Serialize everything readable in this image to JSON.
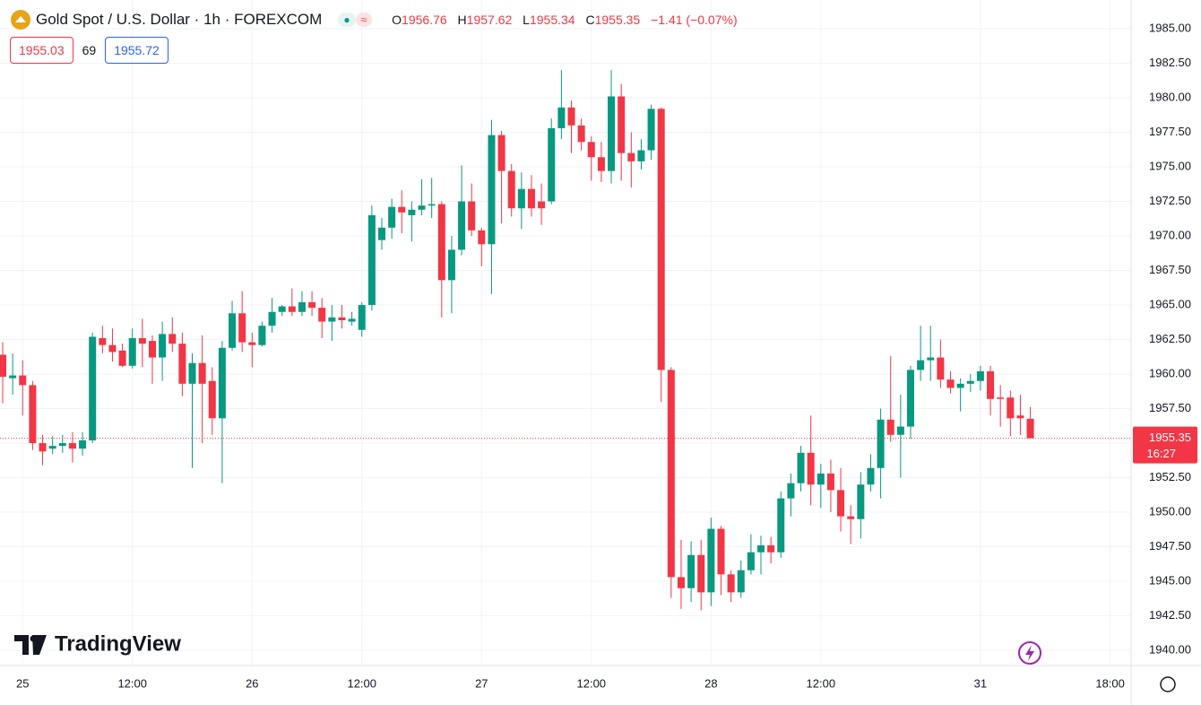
{
  "header": {
    "title": "Gold Spot / U.S. Dollar · 1h · FOREXCOM",
    "ohlc_labels": [
      "O",
      "H",
      "L",
      "C"
    ],
    "change": "−1.41 (−0.07%)",
    "bid": "1955.03",
    "spread": "69",
    "ask": "1955.72",
    "countdown": "16:27",
    "logo": "TradingView"
  },
  "chart_data": {
    "type": "candlestick",
    "up_color": "#089981",
    "down_color": "#f23645",
    "grid": true,
    "open": [
      1961.4,
      1959.7,
      1959.9,
      1959.2,
      1955.0,
      1954.6,
      1954.8,
      1955.0,
      1954.6,
      1955.2,
      1962.6,
      1962.1,
      1961.7,
      1960.6,
      1962.6,
      1962.4,
      1961.2,
      1962.9,
      1962.2,
      1959.3,
      1960.8,
      1959.5,
      1956.8,
      1961.9,
      1964.4,
      1962.3,
      1962.1,
      1963.5,
      1964.5,
      1964.9,
      1964.5,
      1965.2,
      1964.8,
      1963.8,
      1964.1,
      1963.8,
      1963.2,
      1965.0,
      1969.7,
      1970.6,
      1972.1,
      1971.5,
      1971.9,
      1972.2,
      1972.3,
      1966.8,
      1969.0,
      1972.5,
      1970.4,
      1969.4,
      1977.3,
      1974.7,
      1972.0,
      1973.4,
      1972.5,
      1972.5,
      1977.8,
      1979.3,
      1978.0,
      1976.8,
      1975.7,
      1974.7,
      1980.1,
      1976.0,
      1975.4,
      1976.2,
      1979.2,
      1960.3,
      1945.3,
      1944.5,
      1946.9,
      1944.2,
      1948.8,
      1945.5,
      1944.2,
      1945.8,
      1947.1,
      1947.6,
      1947.1,
      1951.0,
      1952.1,
      1954.3,
      1952.0,
      1952.8,
      1951.6,
      1949.7,
      1949.5,
      1952.0,
      1953.2,
      1956.7,
      1955.6,
      1956.2,
      1960.3,
      1961.0,
      1961.2,
      1959.6,
      1959.0,
      1959.3,
      1959.5,
      1960.2,
      1958.3,
      1958.3,
      1957.0,
      1956.76
    ],
    "high": [
      1962.3,
      1961.5,
      1961.0,
      1959.5,
      1955.6,
      1955.5,
      1955.6,
      1955.8,
      1955.8,
      1963.0,
      1963.5,
      1963.3,
      1962.2,
      1963.3,
      1964.0,
      1962.8,
      1963.8,
      1964.1,
      1963.0,
      1961.5,
      1962.8,
      1960.5,
      1962.4,
      1965.3,
      1966.0,
      1963.0,
      1963.8,
      1965.5,
      1965.0,
      1966.2,
      1966.0,
      1966.0,
      1965.5,
      1965.0,
      1965.0,
      1964.5,
      1965.2,
      1972.2,
      1971.3,
      1972.7,
      1973.3,
      1972.5,
      1974.1,
      1974.2,
      1972.5,
      1970.0,
      1975.1,
      1973.8,
      1970.6,
      1978.4,
      1977.6,
      1975.2,
      1974.6,
      1974.4,
      1973.8,
      1978.5,
      1982.0,
      1979.8,
      1978.5,
      1977.2,
      1976.8,
      1982.0,
      1981.0,
      1977.5,
      1977.0,
      1979.5,
      1979.3,
      1960.5,
      1948.0,
      1947.9,
      1948.0,
      1949.6,
      1949.0,
      1945.8,
      1946.5,
      1948.4,
      1948.3,
      1948.2,
      1951.5,
      1952.8,
      1954.8,
      1957.0,
      1953.5,
      1953.8,
      1953.2,
      1950.5,
      1952.9,
      1954.2,
      1957.5,
      1961.3,
      1958.5,
      1960.6,
      1963.5,
      1963.5,
      1962.5,
      1960.2,
      1959.7,
      1960.0,
      1960.6,
      1960.6,
      1959.2,
      1958.8,
      1958.5,
      1957.62
    ],
    "low": [
      1957.9,
      1958.5,
      1957.0,
      1954.5,
      1953.4,
      1954.2,
      1954.3,
      1953.6,
      1954.1,
      1955.0,
      1961.5,
      1960.9,
      1960.5,
      1960.4,
      1960.5,
      1959.3,
      1959.5,
      1961.6,
      1958.4,
      1953.2,
      1955.0,
      1955.6,
      1952.1,
      1961.7,
      1961.6,
      1960.5,
      1962.0,
      1963.0,
      1964.2,
      1964.2,
      1964.2,
      1964.2,
      1962.6,
      1962.4,
      1963.3,
      1963.5,
      1962.7,
      1964.6,
      1969.0,
      1969.8,
      1970.2,
      1969.6,
      1971.5,
      1971.3,
      1964.1,
      1964.4,
      1968.6,
      1970.0,
      1967.8,
      1965.8,
      1970.9,
      1971.4,
      1970.5,
      1971.4,
      1970.8,
      1972.3,
      1977.0,
      1976.0,
      1976.2,
      1974.0,
      1973.9,
      1973.8,
      1974.0,
      1973.5,
      1974.8,
      1975.5,
      1958.0,
      1943.8,
      1943.0,
      1943.5,
      1942.9,
      1943.2,
      1944.0,
      1943.5,
      1943.8,
      1945.5,
      1945.5,
      1946.3,
      1946.7,
      1949.7,
      1951.5,
      1950.5,
      1950.3,
      1950.0,
      1948.6,
      1947.7,
      1948.1,
      1951.5,
      1951.0,
      1955.1,
      1952.5,
      1955.3,
      1959.5,
      1959.5,
      1959.0,
      1958.6,
      1957.3,
      1958.7,
      1958.8,
      1957.0,
      1956.2,
      1955.5,
      1955.6,
      1955.34
    ],
    "close": [
      1959.8,
      1959.9,
      1959.2,
      1955.0,
      1954.4,
      1954.8,
      1955.0,
      1954.6,
      1955.2,
      1962.7,
      1962.1,
      1961.6,
      1960.6,
      1962.6,
      1962.2,
      1961.2,
      1962.9,
      1962.2,
      1959.3,
      1960.8,
      1959.3,
      1956.8,
      1961.9,
      1964.4,
      1962.3,
      1962.1,
      1963.5,
      1964.5,
      1964.9,
      1964.5,
      1965.2,
      1964.8,
      1963.8,
      1964.1,
      1963.9,
      1964.0,
      1965.0,
      1971.5,
      1970.6,
      1972.1,
      1971.7,
      1971.9,
      1972.2,
      1972.3,
      1966.8,
      1969.0,
      1972.5,
      1970.4,
      1969.4,
      1977.3,
      1974.7,
      1972.0,
      1973.4,
      1972.0,
      1972.0,
      1977.8,
      1979.3,
      1978.0,
      1976.8,
      1975.7,
      1974.7,
      1980.1,
      1976.0,
      1975.4,
      1976.2,
      1979.2,
      1960.3,
      1945.3,
      1944.5,
      1946.9,
      1944.2,
      1948.8,
      1945.5,
      1944.2,
      1945.8,
      1947.1,
      1947.6,
      1947.1,
      1951.0,
      1952.1,
      1954.3,
      1952.0,
      1952.8,
      1951.6,
      1949.7,
      1949.5,
      1952.0,
      1953.2,
      1956.7,
      1955.6,
      1956.2,
      1960.3,
      1961.0,
      1961.2,
      1959.6,
      1959.0,
      1959.3,
      1959.5,
      1960.2,
      1958.2,
      1958.2,
      1956.8,
      1956.8,
      1955.35
    ],
    "xlim": [
      -0.27,
      113.1
    ],
    "xticks": [
      {
        "value": 2,
        "label": "25"
      },
      {
        "value": 13,
        "label": "12:00"
      },
      {
        "value": 25,
        "label": "26"
      },
      {
        "value": 36,
        "label": "12:00"
      },
      {
        "value": 48,
        "label": "27"
      },
      {
        "value": 59,
        "label": "12:00"
      },
      {
        "value": 71,
        "label": "28"
      },
      {
        "value": 82,
        "label": "12:00"
      },
      {
        "value": 98,
        "label": "31"
      },
      {
        "value": 111,
        "label": "18:00"
      }
    ],
    "ylim": [
      1938.9,
      1987.08
    ],
    "yticks": [
      {
        "value": 1940,
        "label": "1940.00"
      },
      {
        "value": 1942.5,
        "label": "1942.50"
      },
      {
        "value": 1945,
        "label": "1945.00"
      },
      {
        "value": 1947.5,
        "label": "1947.50"
      },
      {
        "value": 1950,
        "label": "1950.00"
      },
      {
        "value": 1952.5,
        "label": "1952.50"
      },
      {
        "value": 1955,
        "label": "1955.00"
      },
      {
        "value": 1957.5,
        "label": "1957.50"
      },
      {
        "value": 1960,
        "label": "1960.00"
      },
      {
        "value": 1962.5,
        "label": "1962.50"
      },
      {
        "value": 1965,
        "label": "1965.00"
      },
      {
        "value": 1967.5,
        "label": "1967.50"
      },
      {
        "value": 1970,
        "label": "1970.00"
      },
      {
        "value": 1972.5,
        "label": "1972.50"
      },
      {
        "value": 1975,
        "label": "1975.00"
      },
      {
        "value": 1977.5,
        "label": "1977.50"
      },
      {
        "value": 1980,
        "label": "1980.00"
      },
      {
        "value": 1982.5,
        "label": "1982.50"
      },
      {
        "value": 1985,
        "label": "1985.00"
      }
    ]
  }
}
